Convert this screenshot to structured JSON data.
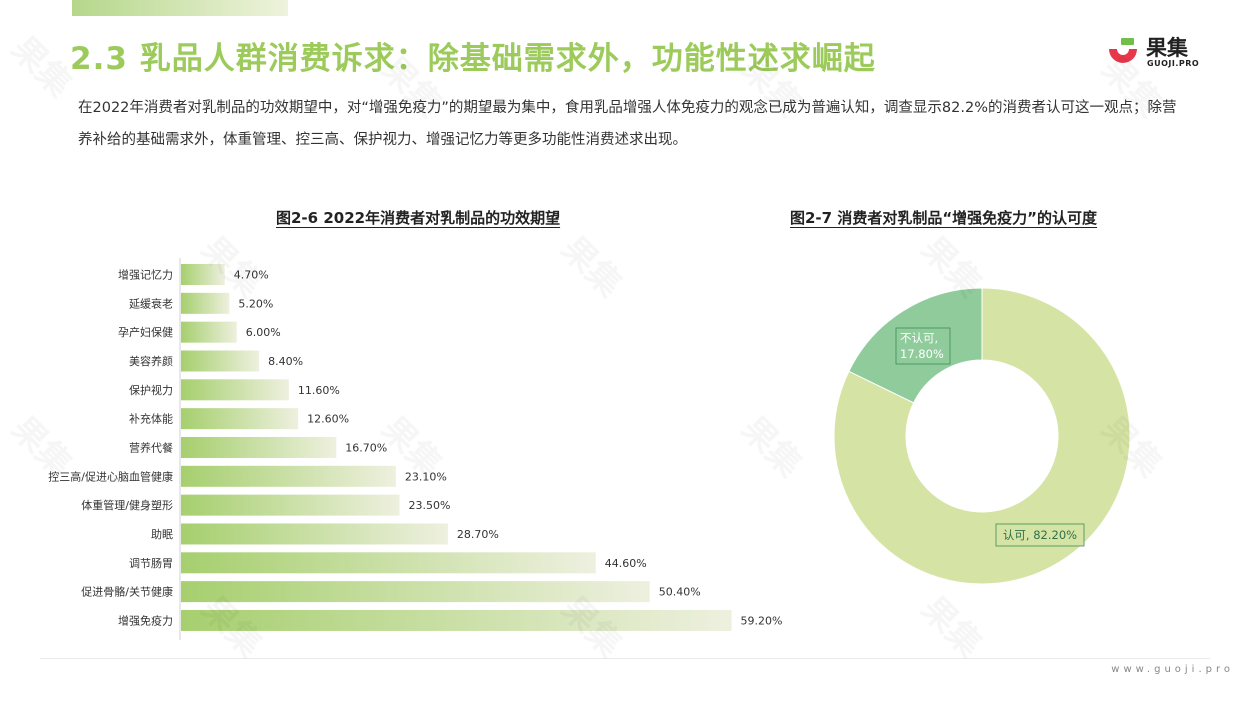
{
  "header": {
    "title": "2.3 乳品人群消费诉求：除基础需求外，功能性述求崛起",
    "logo_cn": "果集",
    "logo_en": "GUOJI.PRO",
    "intro": "在2022年消费者对乳制品的功效期望中，对“增强免疫力”的期望最为集中，食用乳品增强人体免疫力的观念已成为普遍认知，调查显示82.2%的消费者认可这一观点；除营养补给的基础需求外，体重管理、控三高、保护视力、增强记忆力等更多功能性消费述求出现。"
  },
  "colors": {
    "title_green": "#9ccb5c",
    "bar_start": "#a6cf6e",
    "bar_end": "#eef0df",
    "pie_agree": "#d5e4a4",
    "pie_disagree": "#8fcb9b",
    "label_border": "#3d8c5a"
  },
  "watermark": "果集",
  "chart_data": [
    {
      "type": "bar",
      "orientation": "horizontal",
      "title": "图2-6 2022年消费者对乳制品的功效期望",
      "categories": [
        "增强记忆力",
        "延缓衰老",
        "孕产妇保健",
        "美容养颜",
        "保护视力",
        "补充体能",
        "营养代餐",
        "控三高/促进心脑血管健康",
        "体重管理/健身塑形",
        "助眠",
        "调节肠胃",
        "促进骨骼/关节健康",
        "增强免疫力"
      ],
      "values": [
        4.7,
        5.2,
        6.0,
        8.4,
        11.6,
        12.6,
        16.7,
        23.1,
        23.5,
        28.7,
        44.6,
        50.4,
        59.2
      ],
      "labels": [
        "4.70%",
        "5.20%",
        "6.00%",
        "8.40%",
        "11.60%",
        "12.60%",
        "16.70%",
        "23.10%",
        "23.50%",
        "28.70%",
        "44.60%",
        "50.40%",
        "59.20%"
      ]
    },
    {
      "type": "pie",
      "donut": true,
      "title": "图2-7 消费者对乳制品“增强免疫力”的认可度",
      "slices": [
        {
          "name": "认可",
          "value": 82.2,
          "label": "认可, 82.20%"
        },
        {
          "name": "不认可",
          "value": 17.8,
          "label_line1": "不认可,",
          "label_line2": "17.80%"
        }
      ]
    }
  ],
  "footer": {
    "url": "www.guoji.pro"
  }
}
